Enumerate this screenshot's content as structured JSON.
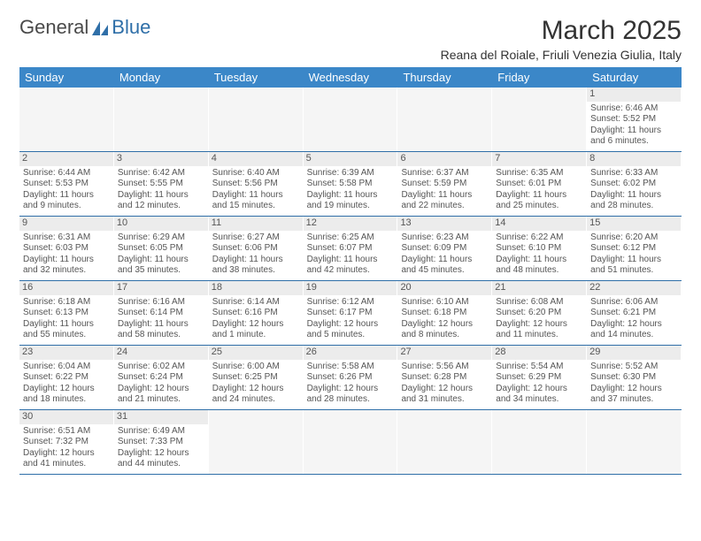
{
  "brand": {
    "part1": "General",
    "part2": "Blue"
  },
  "title": "March 2025",
  "location": "Reana del Roiale, Friuli Venezia Giulia, Italy",
  "colors": {
    "header_bg": "#3b87c8",
    "header_fg": "#ffffff",
    "rule": "#2f6fa8",
    "dayheader_bg": "#ececec"
  },
  "day_labels": [
    "Sunday",
    "Monday",
    "Tuesday",
    "Wednesday",
    "Thursday",
    "Friday",
    "Saturday"
  ],
  "weeks": [
    [
      null,
      null,
      null,
      null,
      null,
      null,
      {
        "n": "1",
        "sunrise": "Sunrise: 6:46 AM",
        "sunset": "Sunset: 5:52 PM",
        "daylight1": "Daylight: 11 hours",
        "daylight2": "and 6 minutes."
      }
    ],
    [
      {
        "n": "2",
        "sunrise": "Sunrise: 6:44 AM",
        "sunset": "Sunset: 5:53 PM",
        "daylight1": "Daylight: 11 hours",
        "daylight2": "and 9 minutes."
      },
      {
        "n": "3",
        "sunrise": "Sunrise: 6:42 AM",
        "sunset": "Sunset: 5:55 PM",
        "daylight1": "Daylight: 11 hours",
        "daylight2": "and 12 minutes."
      },
      {
        "n": "4",
        "sunrise": "Sunrise: 6:40 AM",
        "sunset": "Sunset: 5:56 PM",
        "daylight1": "Daylight: 11 hours",
        "daylight2": "and 15 minutes."
      },
      {
        "n": "5",
        "sunrise": "Sunrise: 6:39 AM",
        "sunset": "Sunset: 5:58 PM",
        "daylight1": "Daylight: 11 hours",
        "daylight2": "and 19 minutes."
      },
      {
        "n": "6",
        "sunrise": "Sunrise: 6:37 AM",
        "sunset": "Sunset: 5:59 PM",
        "daylight1": "Daylight: 11 hours",
        "daylight2": "and 22 minutes."
      },
      {
        "n": "7",
        "sunrise": "Sunrise: 6:35 AM",
        "sunset": "Sunset: 6:01 PM",
        "daylight1": "Daylight: 11 hours",
        "daylight2": "and 25 minutes."
      },
      {
        "n": "8",
        "sunrise": "Sunrise: 6:33 AM",
        "sunset": "Sunset: 6:02 PM",
        "daylight1": "Daylight: 11 hours",
        "daylight2": "and 28 minutes."
      }
    ],
    [
      {
        "n": "9",
        "sunrise": "Sunrise: 6:31 AM",
        "sunset": "Sunset: 6:03 PM",
        "daylight1": "Daylight: 11 hours",
        "daylight2": "and 32 minutes."
      },
      {
        "n": "10",
        "sunrise": "Sunrise: 6:29 AM",
        "sunset": "Sunset: 6:05 PM",
        "daylight1": "Daylight: 11 hours",
        "daylight2": "and 35 minutes."
      },
      {
        "n": "11",
        "sunrise": "Sunrise: 6:27 AM",
        "sunset": "Sunset: 6:06 PM",
        "daylight1": "Daylight: 11 hours",
        "daylight2": "and 38 minutes."
      },
      {
        "n": "12",
        "sunrise": "Sunrise: 6:25 AM",
        "sunset": "Sunset: 6:07 PM",
        "daylight1": "Daylight: 11 hours",
        "daylight2": "and 42 minutes."
      },
      {
        "n": "13",
        "sunrise": "Sunrise: 6:23 AM",
        "sunset": "Sunset: 6:09 PM",
        "daylight1": "Daylight: 11 hours",
        "daylight2": "and 45 minutes."
      },
      {
        "n": "14",
        "sunrise": "Sunrise: 6:22 AM",
        "sunset": "Sunset: 6:10 PM",
        "daylight1": "Daylight: 11 hours",
        "daylight2": "and 48 minutes."
      },
      {
        "n": "15",
        "sunrise": "Sunrise: 6:20 AM",
        "sunset": "Sunset: 6:12 PM",
        "daylight1": "Daylight: 11 hours",
        "daylight2": "and 51 minutes."
      }
    ],
    [
      {
        "n": "16",
        "sunrise": "Sunrise: 6:18 AM",
        "sunset": "Sunset: 6:13 PM",
        "daylight1": "Daylight: 11 hours",
        "daylight2": "and 55 minutes."
      },
      {
        "n": "17",
        "sunrise": "Sunrise: 6:16 AM",
        "sunset": "Sunset: 6:14 PM",
        "daylight1": "Daylight: 11 hours",
        "daylight2": "and 58 minutes."
      },
      {
        "n": "18",
        "sunrise": "Sunrise: 6:14 AM",
        "sunset": "Sunset: 6:16 PM",
        "daylight1": "Daylight: 12 hours",
        "daylight2": "and 1 minute."
      },
      {
        "n": "19",
        "sunrise": "Sunrise: 6:12 AM",
        "sunset": "Sunset: 6:17 PM",
        "daylight1": "Daylight: 12 hours",
        "daylight2": "and 5 minutes."
      },
      {
        "n": "20",
        "sunrise": "Sunrise: 6:10 AM",
        "sunset": "Sunset: 6:18 PM",
        "daylight1": "Daylight: 12 hours",
        "daylight2": "and 8 minutes."
      },
      {
        "n": "21",
        "sunrise": "Sunrise: 6:08 AM",
        "sunset": "Sunset: 6:20 PM",
        "daylight1": "Daylight: 12 hours",
        "daylight2": "and 11 minutes."
      },
      {
        "n": "22",
        "sunrise": "Sunrise: 6:06 AM",
        "sunset": "Sunset: 6:21 PM",
        "daylight1": "Daylight: 12 hours",
        "daylight2": "and 14 minutes."
      }
    ],
    [
      {
        "n": "23",
        "sunrise": "Sunrise: 6:04 AM",
        "sunset": "Sunset: 6:22 PM",
        "daylight1": "Daylight: 12 hours",
        "daylight2": "and 18 minutes."
      },
      {
        "n": "24",
        "sunrise": "Sunrise: 6:02 AM",
        "sunset": "Sunset: 6:24 PM",
        "daylight1": "Daylight: 12 hours",
        "daylight2": "and 21 minutes."
      },
      {
        "n": "25",
        "sunrise": "Sunrise: 6:00 AM",
        "sunset": "Sunset: 6:25 PM",
        "daylight1": "Daylight: 12 hours",
        "daylight2": "and 24 minutes."
      },
      {
        "n": "26",
        "sunrise": "Sunrise: 5:58 AM",
        "sunset": "Sunset: 6:26 PM",
        "daylight1": "Daylight: 12 hours",
        "daylight2": "and 28 minutes."
      },
      {
        "n": "27",
        "sunrise": "Sunrise: 5:56 AM",
        "sunset": "Sunset: 6:28 PM",
        "daylight1": "Daylight: 12 hours",
        "daylight2": "and 31 minutes."
      },
      {
        "n": "28",
        "sunrise": "Sunrise: 5:54 AM",
        "sunset": "Sunset: 6:29 PM",
        "daylight1": "Daylight: 12 hours",
        "daylight2": "and 34 minutes."
      },
      {
        "n": "29",
        "sunrise": "Sunrise: 5:52 AM",
        "sunset": "Sunset: 6:30 PM",
        "daylight1": "Daylight: 12 hours",
        "daylight2": "and 37 minutes."
      }
    ],
    [
      {
        "n": "30",
        "sunrise": "Sunrise: 6:51 AM",
        "sunset": "Sunset: 7:32 PM",
        "daylight1": "Daylight: 12 hours",
        "daylight2": "and 41 minutes."
      },
      {
        "n": "31",
        "sunrise": "Sunrise: 6:49 AM",
        "sunset": "Sunset: 7:33 PM",
        "daylight1": "Daylight: 12 hours",
        "daylight2": "and 44 minutes."
      },
      null,
      null,
      null,
      null,
      null
    ]
  ]
}
